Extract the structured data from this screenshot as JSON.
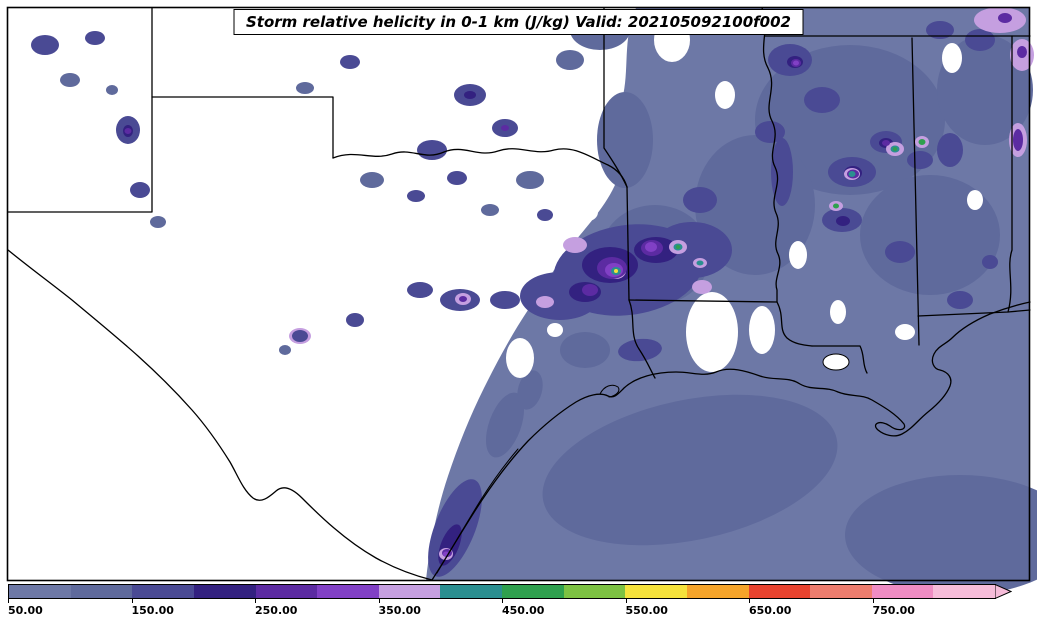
{
  "chart_data": {
    "type": "heatmap",
    "title": "Storm relative helicity in 0-1 km (J/kg) Valid: 202105092100f002",
    "variable": "Storm relative helicity in 0-1 km",
    "units": "J/kg",
    "valid_label": "202105092100f002",
    "legend_position": "bottom",
    "colorbar": {
      "orientation": "horizontal",
      "min": 50,
      "max": 850,
      "extend": "max",
      "tick_values": [
        50,
        150,
        250,
        350,
        450,
        550,
        650,
        750
      ],
      "tick_labels": [
        "50.00",
        "150.00",
        "250.00",
        "350.00",
        "450.00",
        "550.00",
        "650.00",
        "750.00"
      ],
      "levels": [
        50,
        100,
        150,
        200,
        250,
        300,
        350,
        400,
        450,
        500,
        550,
        600,
        650,
        700,
        750,
        800,
        850
      ],
      "colors": [
        "#6d78a6",
        "#5f6a9c",
        "#4a4a94",
        "#332180",
        "#5c2ba2",
        "#8140c5",
        "#c59fe0",
        "#2b8f90",
        "#2fa04e",
        "#7dc242",
        "#f5e23b",
        "#f5a42a",
        "#e8432e",
        "#ed7d6e",
        "#ef8cc3",
        "#f6bcd9"
      ]
    },
    "region_note": "Filled contour map over the south-central United States: broad 50-150 J/kg area covering the Gulf of Mexico, Louisiana, Mississippi, Alabama and Arkansas; embedded 150-350 J/kg maxima over central Texas, the Texas coast and northern Mississippi/Alabama; isolated small peaks of roughly 400-600 J/kg (teal/green/yellow specks) in central Texas and northern Mississippi."
  }
}
